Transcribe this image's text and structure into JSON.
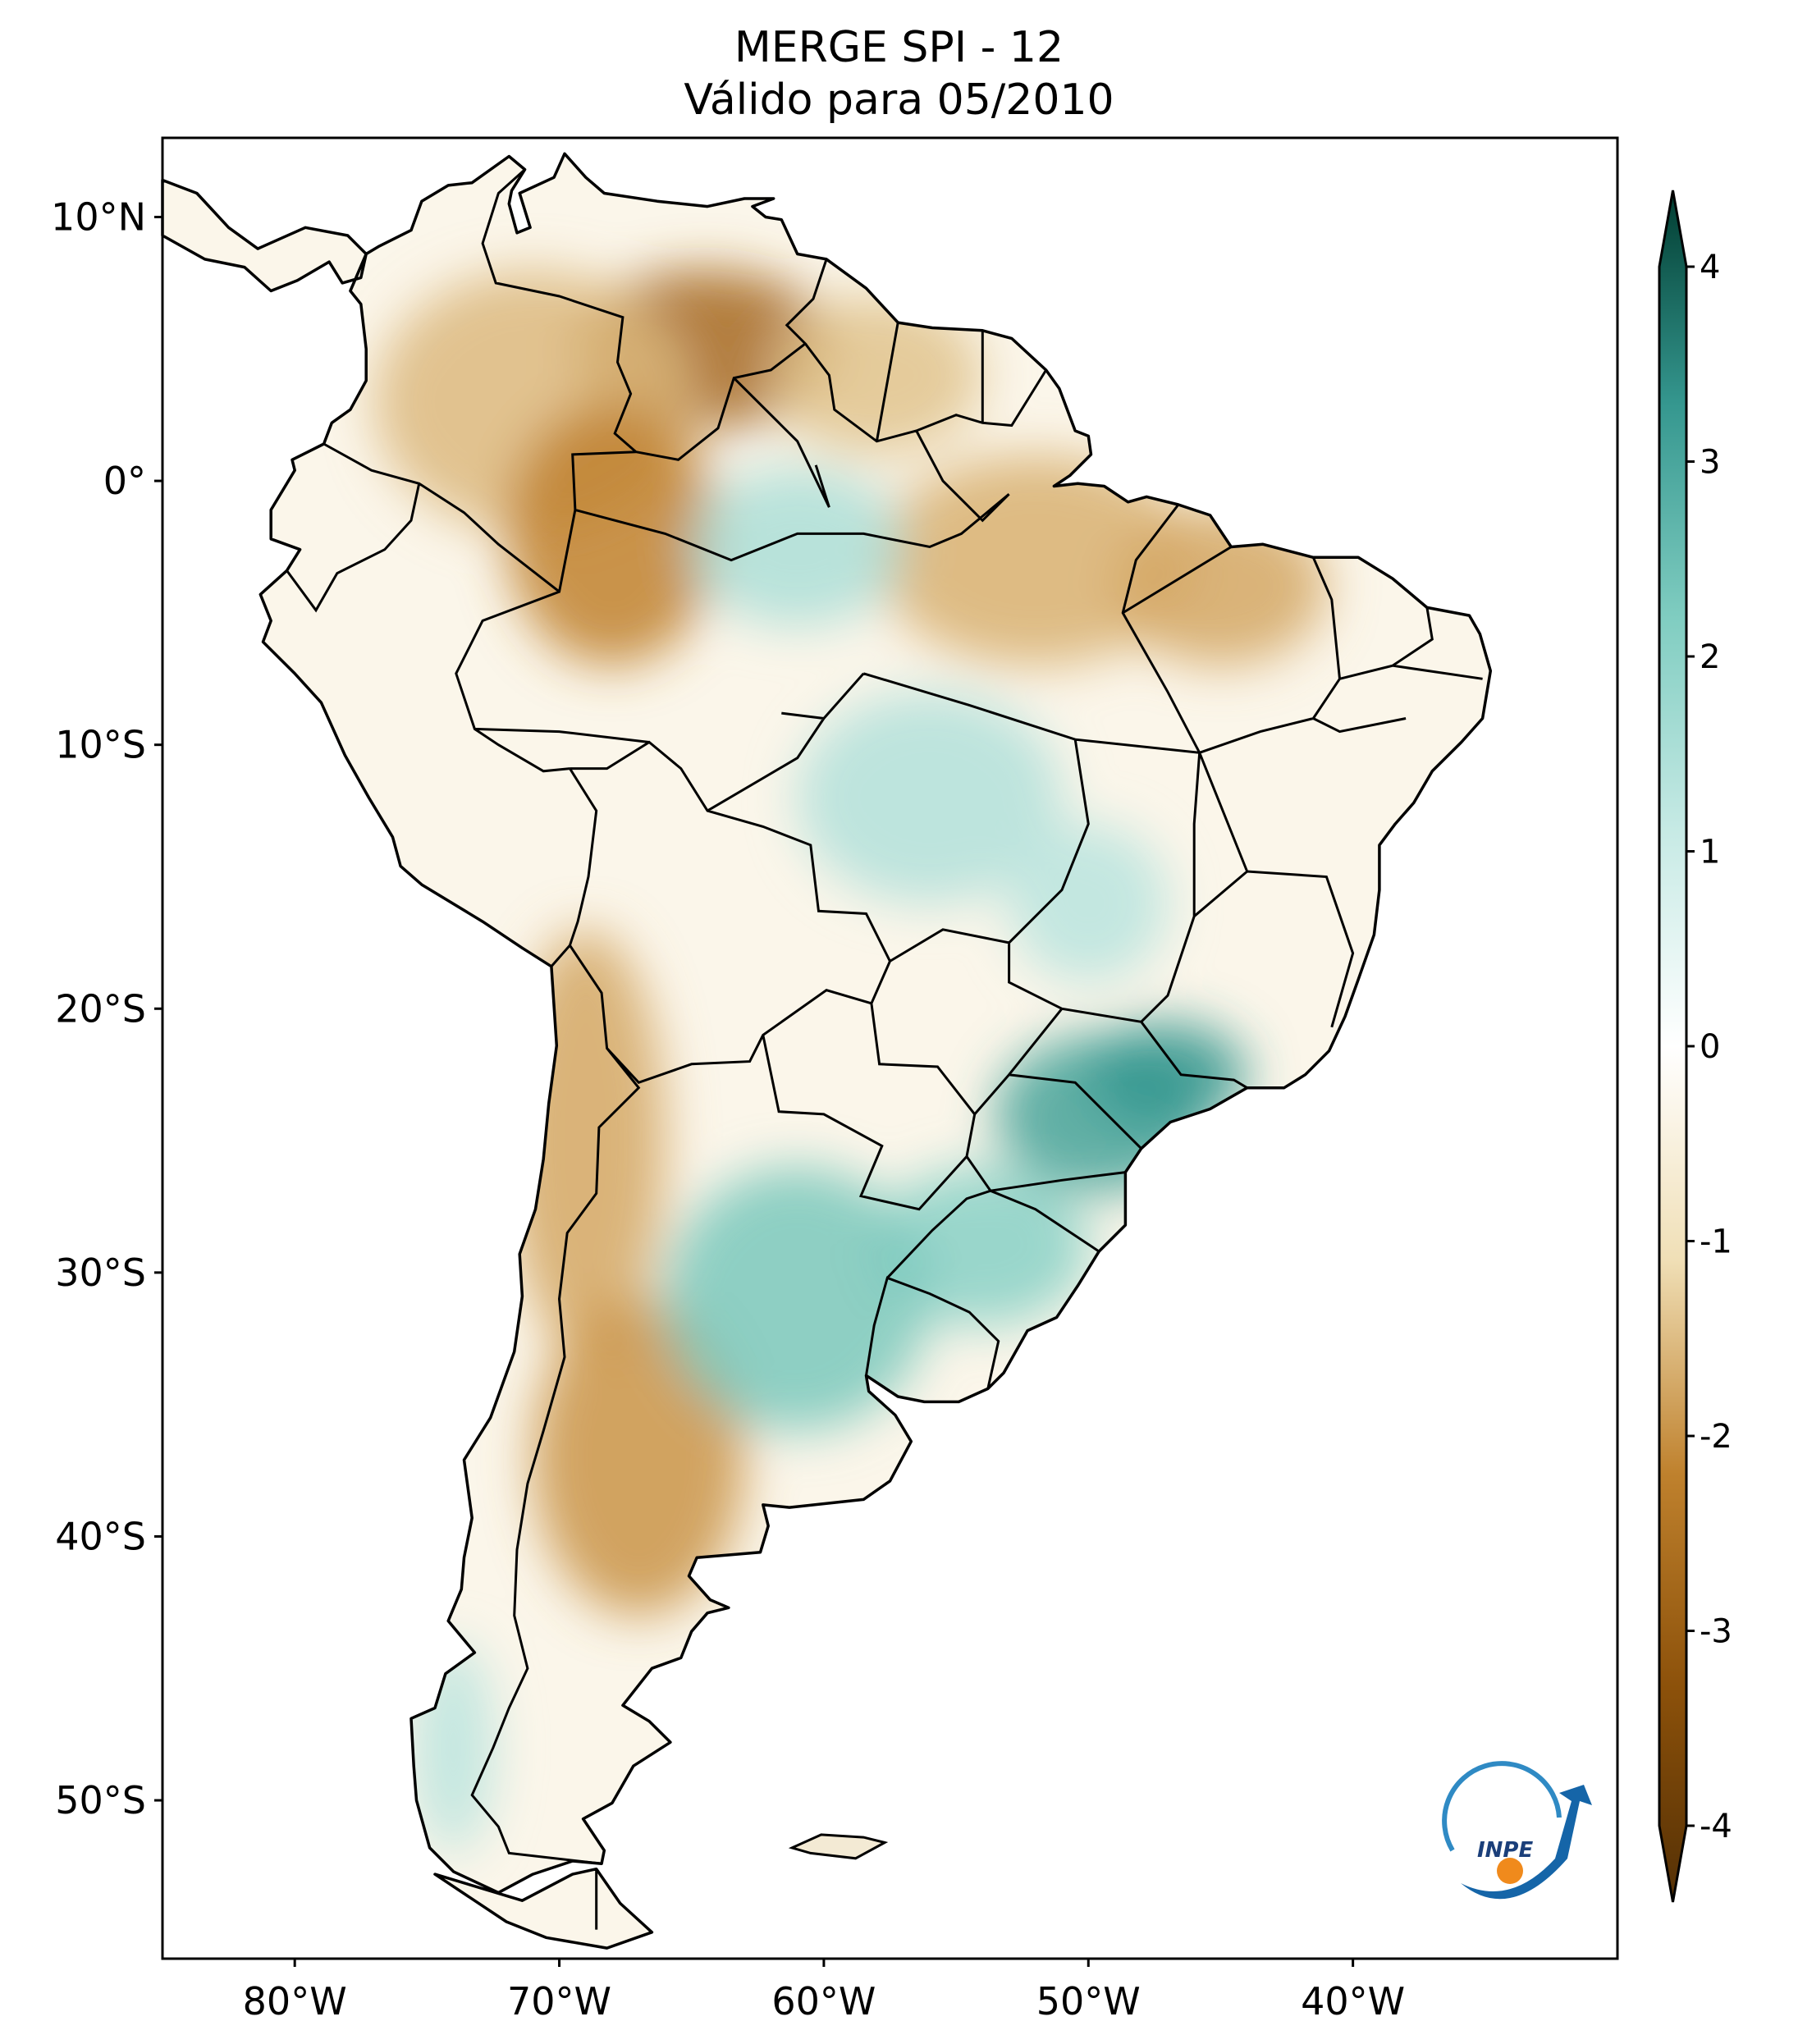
{
  "title": {
    "line1": "MERGE   SPI - 12",
    "line2": "Válido para 05/2010"
  },
  "map": {
    "lon_range": [
      -85,
      -30
    ],
    "lat_range": [
      -56,
      13
    ],
    "lon_ticks": [
      {
        "value": -80,
        "label": "80°W"
      },
      {
        "value": -70,
        "label": "70°W"
      },
      {
        "value": -60,
        "label": "60°W"
      },
      {
        "value": -50,
        "label": "50°W"
      },
      {
        "value": -40,
        "label": "40°W"
      }
    ],
    "lat_ticks": [
      {
        "value": 10,
        "label": "10°N"
      },
      {
        "value": 0,
        "label": "0°"
      },
      {
        "value": -10,
        "label": "10°S"
      },
      {
        "value": -20,
        "label": "20°S"
      },
      {
        "value": -30,
        "label": "30°S"
      },
      {
        "value": -40,
        "label": "40°S"
      },
      {
        "value": -50,
        "label": "50°S"
      }
    ],
    "anomalies": [
      {
        "name": "dry-venezuela",
        "lon": -64.5,
        "lat": 5,
        "rlon": 5,
        "rlat": 3,
        "spi": -2.5
      },
      {
        "name": "dry-colombia",
        "lon": -71,
        "lat": 3,
        "rlon": 6,
        "rlat": 5,
        "spi": -1.4
      },
      {
        "name": "dry-nw-amazon",
        "lon": -68,
        "lat": -2,
        "rlon": 4,
        "rlat": 5,
        "spi": -2.0
      },
      {
        "name": "dry-guianas",
        "lon": -58,
        "lat": 4,
        "rlon": 4,
        "rlat": 3,
        "spi": -1.3
      },
      {
        "name": "dry-para",
        "lon": -52,
        "lat": -3,
        "rlon": 6,
        "rlat": 4,
        "spi": -1.5
      },
      {
        "name": "dry-maranhao",
        "lon": -45,
        "lat": -4,
        "rlon": 4,
        "rlat": 3,
        "spi": -1.6
      },
      {
        "name": "dry-andes",
        "lon": -69,
        "lat": -25,
        "rlon": 3,
        "rlat": 8,
        "spi": -1.6
      },
      {
        "name": "dry-patagonia",
        "lon": -67,
        "lat": -37,
        "rlon": 4,
        "rlat": 6,
        "spi": -1.8
      },
      {
        "name": "wet-amazon",
        "lon": -61,
        "lat": -2.5,
        "rlon": 4,
        "rlat": 3,
        "spi": 1.4
      },
      {
        "name": "wet-mato-grosso",
        "lon": -56,
        "lat": -12,
        "rlon": 5,
        "rlat": 4,
        "spi": 1.3
      },
      {
        "name": "wet-parana",
        "lon": -49.5,
        "lat": -24,
        "rlon": 4,
        "rlat": 3,
        "spi": 2.8
      },
      {
        "name": "wet-sao-paulo",
        "lon": -47,
        "lat": -22.5,
        "rlon": 3,
        "rlat": 2,
        "spi": 3.0
      },
      {
        "name": "wet-rio-grande-sul",
        "lon": -54,
        "lat": -29,
        "rlon": 4,
        "rlat": 3,
        "spi": 1.9
      },
      {
        "name": "wet-pampas",
        "lon": -61,
        "lat": -31,
        "rlon": 5,
        "rlat": 5,
        "spi": 2.1
      },
      {
        "name": "wet-goias",
        "lon": -50,
        "lat": -16,
        "rlon": 3,
        "rlat": 3,
        "spi": 1.2
      },
      {
        "name": "wet-chile-south",
        "lon": -74,
        "lat": -48,
        "rlon": 1.5,
        "rlat": 4,
        "spi": 1.2
      }
    ]
  },
  "colorbar": {
    "min": -4,
    "max": 4,
    "ticks": [
      {
        "value": 4,
        "label": "4"
      },
      {
        "value": 3,
        "label": "3"
      },
      {
        "value": 2,
        "label": "2"
      },
      {
        "value": 1,
        "label": "1"
      },
      {
        "value": 0,
        "label": "0"
      },
      {
        "value": -1,
        "label": "-1"
      },
      {
        "value": -2,
        "label": "-2"
      },
      {
        "value": -3,
        "label": "-3"
      },
      {
        "value": -4,
        "label": "-4"
      }
    ],
    "stops": [
      {
        "value": -4,
        "color": "#543005"
      },
      {
        "value": -3,
        "color": "#8c510a"
      },
      {
        "value": -2,
        "color": "#bf812d"
      },
      {
        "value": -1,
        "color": "#f0dfb6"
      },
      {
        "value": 0,
        "color": "#ffffff"
      },
      {
        "value": 1,
        "color": "#c7eae5"
      },
      {
        "value": 2,
        "color": "#80cdc1"
      },
      {
        "value": 3,
        "color": "#35978f"
      },
      {
        "value": 4,
        "color": "#003c30"
      }
    ]
  },
  "logo": {
    "text": "INPE"
  }
}
